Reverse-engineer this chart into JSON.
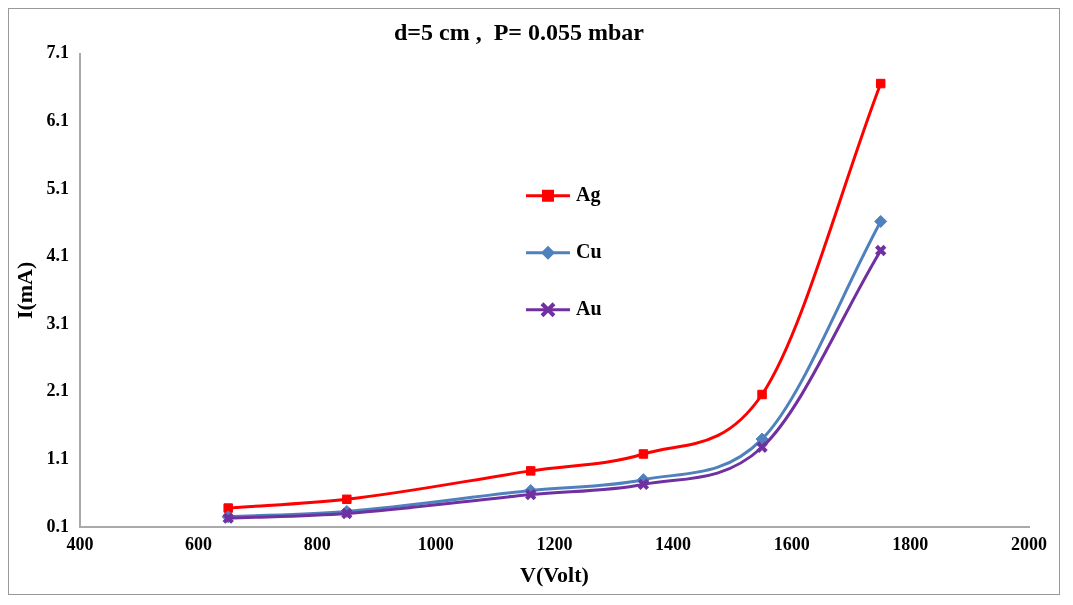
{
  "chart_data": {
    "type": "line",
    "title": "d=5 cm ,  P= 0.055 mbar",
    "xlabel": "V(Volt)",
    "ylabel": "I(mA)",
    "x": [
      650,
      850,
      1160,
      1350,
      1550,
      1750
    ],
    "series": [
      {
        "name": "Ag",
        "color": "#ff0000",
        "marker": "square",
        "values": [
          0.38,
          0.51,
          0.93,
          1.18,
          2.06,
          6.66
        ]
      },
      {
        "name": "Cu",
        "color": "#4f81bd",
        "marker": "diamond",
        "values": [
          0.25,
          0.33,
          0.64,
          0.8,
          1.4,
          4.62
        ]
      },
      {
        "name": "Au",
        "color": "#7030a0",
        "marker": "cross",
        "values": [
          0.23,
          0.3,
          0.58,
          0.73,
          1.28,
          4.19
        ]
      }
    ],
    "xlim": [
      400,
      2000
    ],
    "xticks": [
      400,
      600,
      800,
      1000,
      1200,
      1400,
      1600,
      1800,
      2000
    ],
    "ylim": [
      0.1,
      7.1
    ],
    "yticks": [
      0.1,
      1.1,
      2.1,
      3.1,
      4.1,
      5.1,
      6.1,
      7.1
    ],
    "grid": false,
    "legend": "top"
  }
}
